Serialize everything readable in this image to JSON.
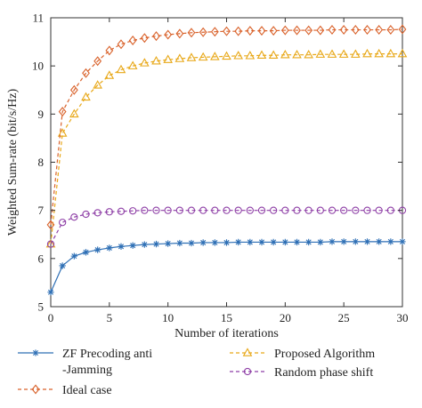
{
  "chart_data": {
    "type": "line",
    "title": "",
    "xlabel": "Number of iterations",
    "ylabel": "Weighted Sum-rate (bit/s/Hz)",
    "xlim": [
      0,
      30
    ],
    "ylim": [
      5,
      11
    ],
    "xticks": [
      0,
      5,
      10,
      15,
      20,
      25,
      30
    ],
    "yticks": [
      5,
      6,
      7,
      8,
      9,
      10,
      11
    ],
    "grid": false,
    "legend_position": "bottom",
    "x": [
      0,
      1,
      2,
      3,
      4,
      5,
      6,
      7,
      8,
      9,
      10,
      11,
      12,
      13,
      14,
      15,
      16,
      17,
      18,
      19,
      20,
      21,
      22,
      23,
      24,
      25,
      26,
      27,
      28,
      29,
      30
    ],
    "series": [
      {
        "name": "ZF Precoding anti -Jamming",
        "legend_lines": [
          "ZF Precoding anti",
          "-Jamming"
        ],
        "color": "#2e6fb5",
        "marker": "star",
        "line": "solid",
        "values": [
          5.3,
          5.85,
          6.05,
          6.13,
          6.18,
          6.22,
          6.25,
          6.27,
          6.29,
          6.3,
          6.31,
          6.32,
          6.32,
          6.33,
          6.33,
          6.33,
          6.34,
          6.34,
          6.34,
          6.34,
          6.34,
          6.34,
          6.34,
          6.34,
          6.35,
          6.35,
          6.35,
          6.35,
          6.35,
          6.35,
          6.35
        ]
      },
      {
        "name": "Proposed Algorithm",
        "legend_lines": [
          "Proposed Algorithm"
        ],
        "color": "#e8a818",
        "marker": "triangle",
        "line": "dashed",
        "values": [
          6.3,
          8.6,
          9.0,
          9.35,
          9.6,
          9.8,
          9.92,
          10.0,
          10.06,
          10.1,
          10.13,
          10.15,
          10.17,
          10.18,
          10.19,
          10.2,
          10.21,
          10.21,
          10.22,
          10.22,
          10.23,
          10.23,
          10.23,
          10.24,
          10.24,
          10.24,
          10.24,
          10.25,
          10.25,
          10.25,
          10.25
        ]
      },
      {
        "name": "Ideal case",
        "legend_lines": [
          "Ideal case"
        ],
        "color": "#d9622b",
        "marker": "diamond",
        "line": "dashed",
        "values": [
          6.7,
          9.05,
          9.5,
          9.85,
          10.1,
          10.32,
          10.45,
          10.53,
          10.58,
          10.62,
          10.65,
          10.67,
          10.69,
          10.7,
          10.71,
          10.72,
          10.72,
          10.73,
          10.73,
          10.73,
          10.74,
          10.74,
          10.74,
          10.74,
          10.75,
          10.75,
          10.75,
          10.75,
          10.75,
          10.75,
          10.76
        ]
      },
      {
        "name": "Random phase shift",
        "legend_lines": [
          "Random phase shift"
        ],
        "color": "#8e3fa6",
        "marker": "circle",
        "line": "dashed",
        "values": [
          6.3,
          6.75,
          6.86,
          6.92,
          6.95,
          6.97,
          6.98,
          6.99,
          7.0,
          7.0,
          7.0,
          7.0,
          7.0,
          7.0,
          7.0,
          7.0,
          7.0,
          7.0,
          7.0,
          7.0,
          7.0,
          7.0,
          7.0,
          7.0,
          7.0,
          7.0,
          7.0,
          7.0,
          7.0,
          7.0,
          7.0
        ]
      }
    ]
  }
}
